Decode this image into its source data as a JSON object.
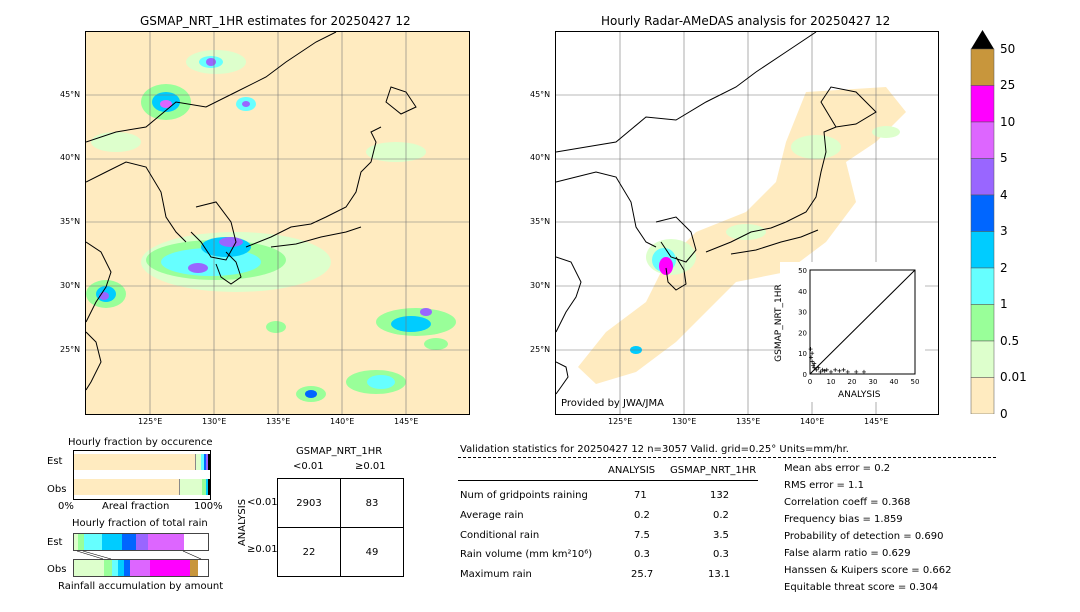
{
  "left_map": {
    "title": "GSMAP_NRT_1HR estimates for 20250427 12",
    "lat_labels": [
      "45°N",
      "40°N",
      "35°N",
      "30°N",
      "25°N"
    ],
    "lon_labels": [
      "125°E",
      "130°E",
      "135°E",
      "140°E",
      "145°E"
    ]
  },
  "right_map": {
    "title": "Hourly Radar-AMeDAS analysis for 20250427 12",
    "lat_labels": [
      "45°N",
      "40°N",
      "35°N",
      "30°N",
      "25°N"
    ],
    "lon_labels": [
      "125°E",
      "130°E",
      "135°E",
      "140°E",
      "145°E"
    ],
    "credit": "Provided by JWA/JMA"
  },
  "colorbar": {
    "labels": [
      "50",
      "25",
      "10",
      "5",
      "4",
      "3",
      "2",
      "1",
      "0.5",
      "0.01",
      "0"
    ],
    "colors": [
      "#c8963c",
      "#ff00ff",
      "#dd66ff",
      "#9966ff",
      "#0066ff",
      "#00ccff",
      "#66ffff",
      "#99ff99",
      "#ddffcc",
      "#ffebc0"
    ]
  },
  "fraction_occurrence": {
    "title": "Hourly fraction by occurence",
    "rows": [
      "Est",
      "Obs"
    ],
    "xaxis_left": "0%",
    "xaxis_mid": "Areal fraction",
    "xaxis_right": "100%"
  },
  "fraction_total": {
    "title": "Hourly fraction of total rain",
    "rows": [
      "Est",
      "Obs"
    ],
    "xlabel": "Rainfall accumulation by amount"
  },
  "contingency": {
    "title": "GSMAP_NRT_1HR",
    "col_lt": "<0.01",
    "col_ge": "≥0.01",
    "row_axis": "ANALYSIS",
    "row_lt": "<0.01",
    "row_ge": "≥0.01",
    "cells": [
      "2903",
      "83",
      "22",
      "49"
    ]
  },
  "validation": {
    "header": "Validation statistics for 20250427 12  n=3057 Valid. grid=0.25° Units=mm/hr.",
    "col1": "ANALYSIS",
    "col2": "GSMAP_NRT_1HR",
    "rows": [
      {
        "label": "Num of gridpoints raining",
        "a": "71",
        "g": "132"
      },
      {
        "label": "Average rain",
        "a": "0.2",
        "g": "0.2"
      },
      {
        "label": "Conditional rain",
        "a": "7.5",
        "g": "3.5"
      },
      {
        "label": "Rain volume (mm km²10⁶)",
        "a": "0.3",
        "g": "0.3"
      },
      {
        "label": "Maximum rain",
        "a": "25.7",
        "g": "13.1"
      }
    ],
    "scores": [
      "Mean abs error =    0.2",
      "RMS error =    1.1",
      "Correlation coeff =  0.368",
      "Frequency bias =  1.859",
      "Probability of detection =  0.690",
      "False alarm ratio =  0.629",
      "Hanssen & Kuipers score =  0.662",
      "Equitable threat score =  0.304"
    ]
  },
  "chart_data": {
    "type": "scatter",
    "xlabel": "ANALYSIS",
    "ylabel": "GSMAP_NRT_1HR",
    "xlim": [
      0,
      50
    ],
    "ylim": [
      0,
      50
    ],
    "ticks": [
      "0",
      "10",
      "20",
      "30",
      "40",
      "50"
    ],
    "points": [
      [
        0.5,
        8
      ],
      [
        1,
        6
      ],
      [
        1.5,
        4
      ],
      [
        2,
        3
      ],
      [
        3,
        2
      ],
      [
        4,
        3
      ],
      [
        5,
        1
      ],
      [
        6,
        2
      ],
      [
        7,
        1.5
      ],
      [
        8,
        2
      ],
      [
        10,
        1
      ],
      [
        12,
        2
      ],
      [
        14,
        1.5
      ],
      [
        16,
        2
      ],
      [
        18,
        1
      ],
      [
        22,
        1
      ],
      [
        25.7,
        1
      ],
      [
        0.3,
        12
      ],
      [
        1,
        10
      ],
      [
        2,
        5
      ]
    ]
  }
}
